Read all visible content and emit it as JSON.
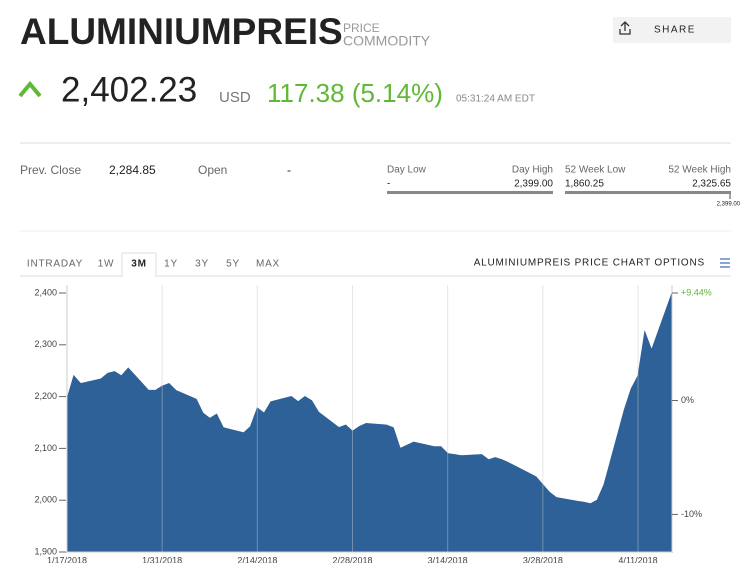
{
  "header": {
    "title": "ALUMINIUMPREIS",
    "tag1": "PRICE",
    "tag2": "COMMODITY",
    "share": "SHARE"
  },
  "quote": {
    "price": "2,402.23",
    "currency": "USD",
    "change": "117.38 (5.14%)",
    "time": "05:31:24 AM EDT"
  },
  "stats": {
    "prev_close_label": "Prev. Close",
    "prev_close": "2,284.85",
    "open_label": "Open",
    "open": "-",
    "day_low_label": "Day Low",
    "day_low": "-",
    "day_high_label": "Day High",
    "day_high": "2,399.00",
    "week52_low_label": "52 Week Low",
    "week52_low": "1,860.25",
    "week52_high_label": "52 Week High",
    "week52_high": "2,325.65",
    "marker": "2,399.00"
  },
  "tabs": [
    "INTRADAY",
    "1W",
    "3M",
    "1Y",
    "3Y",
    "5Y",
    "MAX"
  ],
  "selected_tab": "3M",
  "chart_options": "ALUMINIUMPREIS PRICE CHART OPTIONS",
  "chart_data": {
    "type": "area",
    "color": "#2f6199",
    "x": [
      "1/17/2018",
      "1/18/2018",
      "1/19/2018",
      "1/22/2018",
      "1/23/2018",
      "1/24/2018",
      "1/25/2018",
      "1/26/2018",
      "1/29/2018",
      "1/30/2018",
      "1/31/2018",
      "2/1/2018",
      "2/2/2018",
      "2/5/2018",
      "2/6/2018",
      "2/7/2018",
      "2/8/2018",
      "2/9/2018",
      "2/12/2018",
      "2/13/2018",
      "2/14/2018",
      "2/15/2018",
      "2/16/2018",
      "2/19/2018",
      "2/20/2018",
      "2/21/2018",
      "2/22/2018",
      "2/23/2018",
      "2/26/2018",
      "2/27/2018",
      "2/28/2018",
      "3/1/2018",
      "3/2/2018",
      "3/5/2018",
      "3/6/2018",
      "3/7/2018",
      "3/8/2018",
      "3/9/2018",
      "3/12/2018",
      "3/13/2018",
      "3/14/2018",
      "3/15/2018",
      "3/16/2018",
      "3/19/2018",
      "3/20/2018",
      "3/21/2018",
      "3/22/2018",
      "3/23/2018",
      "3/26/2018",
      "3/27/2018",
      "3/28/2018",
      "3/29/2018",
      "3/30/2018",
      "4/2/2018",
      "4/3/2018",
      "4/4/2018",
      "4/5/2018",
      "4/6/2018",
      "4/9/2018",
      "4/10/2018",
      "4/11/2018",
      "4/12/2018",
      "4/13/2018",
      "4/16/2018"
    ],
    "values": [
      2195,
      2240,
      2225,
      2234,
      2245,
      2248,
      2240,
      2255,
      2212,
      2212,
      2220,
      2225,
      2212,
      2195,
      2168,
      2158,
      2166,
      2140,
      2130,
      2142,
      2178,
      2168,
      2190,
      2200,
      2190,
      2200,
      2192,
      2170,
      2140,
      2145,
      2133,
      2142,
      2148,
      2145,
      2140,
      2100,
      2106,
      2112,
      2103,
      2103,
      2090,
      2088,
      2086,
      2088,
      2078,
      2082,
      2078,
      2072,
      2052,
      2045,
      2030,
      2015,
      2005,
      1998,
      1996,
      1993,
      2000,
      2030,
      2175,
      2215,
      2240,
      2325,
      2290,
      2400
    ],
    "xlim": [
      "1/17/2018",
      "4/16/2018"
    ],
    "xticks": [
      "1/17/2018",
      "1/31/2018",
      "2/14/2018",
      "2/28/2018",
      "3/14/2018",
      "3/28/2018",
      "4/11/2018"
    ],
    "ylim": [
      1900,
      2400
    ],
    "yticks": [
      {
        "value": 1900,
        "label": "1,900"
      },
      {
        "value": 2000,
        "label": "2,000"
      },
      {
        "value": 2100,
        "label": "2,100"
      },
      {
        "value": 2200,
        "label": "2,200"
      },
      {
        "value": 2300,
        "label": "2,300"
      },
      {
        "value": 2400,
        "label": "2,400"
      }
    ],
    "y2lim": [
      -13.3,
      9.44
    ],
    "y2ticks": [
      {
        "value": 9.44,
        "label": "+9.44%"
      },
      {
        "value": 0,
        "label": "0%"
      },
      {
        "value": -10,
        "label": "-10%"
      }
    ],
    "grid": true
  }
}
